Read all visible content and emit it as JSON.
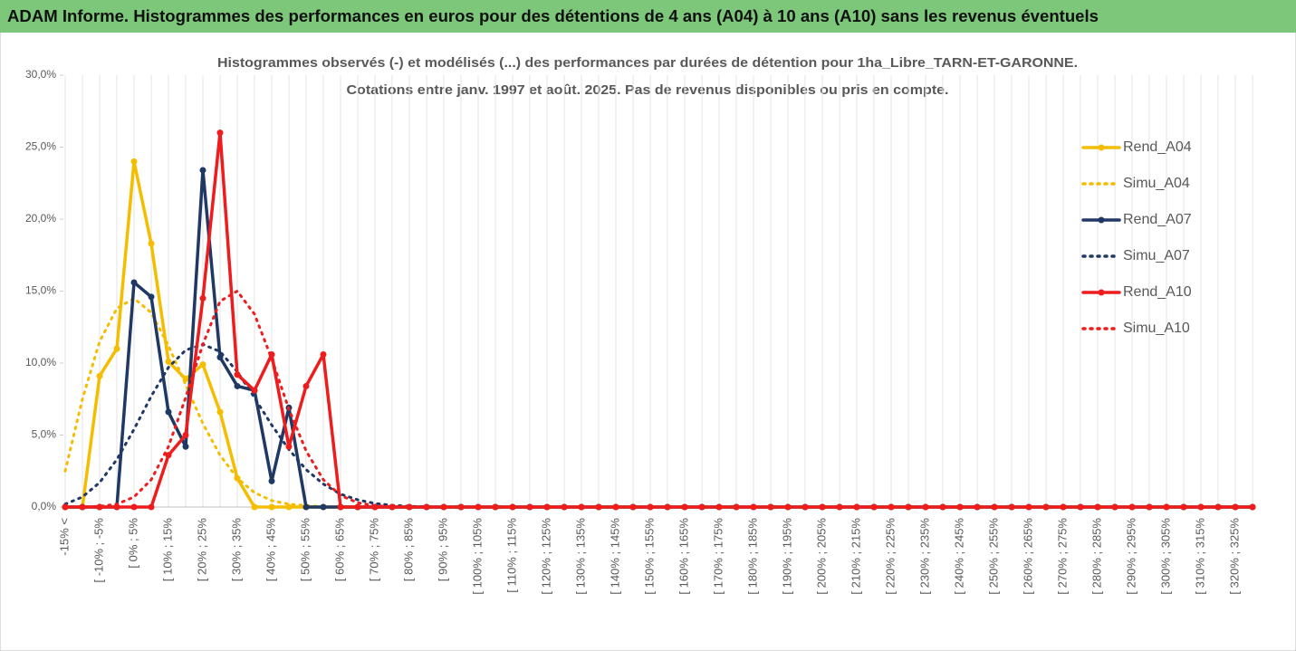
{
  "page_title": "ADAM Informe. Histogrammes des performances en euros pour des détentions de 4 ans (A04) à 10 ans (A10) sans les revenus éventuels",
  "chart_data": {
    "type": "line",
    "title": [
      "Histogrammes observés (-) et modélisés (...) des performances par durées de détention pour 1ha_Libre_TARN-ET-GARONNE.",
      "Cotations entre janv. 1997 et août. 2025. Pas de revenus disponibles ou pris en compte."
    ],
    "categories": [
      "-15% <",
      null,
      "[ -10% ; -5%",
      null,
      "[ 0% ; 5%",
      null,
      "[ 10% ; 15%",
      null,
      "[ 20% ; 25%",
      null,
      "[ 30% ; 35%",
      null,
      "[ 40% ; 45%",
      null,
      "[ 50% ; 55%",
      null,
      "[ 60% ; 65%",
      null,
      "[ 70% ; 75%",
      null,
      "[ 80% ; 85%",
      null,
      "[ 90% ; 95%",
      null,
      "[ 100% ; 105%",
      null,
      "[ 110% ; 115%",
      null,
      "[ 120% ; 125%",
      null,
      "[ 130% ; 135%",
      null,
      "[ 140% ; 145%",
      null,
      "[ 150% ; 155%",
      null,
      "[ 160% ; 165%",
      null,
      "[ 170% ; 175%",
      null,
      "[ 180% ; 185%",
      null,
      "[ 190% ; 195%",
      null,
      "[ 200% ; 205%",
      null,
      "[ 210% ; 215%",
      null,
      "[ 220% ; 225%",
      null,
      "[ 230% ; 235%",
      null,
      "[ 240% ; 245%",
      null,
      "[ 250% ; 255%",
      null,
      "[ 260% ; 265%",
      null,
      "[ 270% ; 275%",
      null,
      "[ 280% ; 285%",
      null,
      "[ 290% ; 295%",
      null,
      "[ 300% ; 305%",
      null,
      "[ 310% ; 315%",
      null,
      "[ 320% ; 325%",
      null
    ],
    "series": [
      {
        "name": "Rend_A04",
        "color": "#f5bd00",
        "line_style": "solid",
        "values": [
          0,
          0,
          9.1,
          11.0,
          24.0,
          18.3,
          10.1,
          8.9,
          9.9,
          6.6,
          2.0,
          0,
          0,
          0,
          0,
          0,
          0,
          0,
          0,
          0,
          0,
          0,
          0,
          0,
          0,
          0,
          0,
          0,
          0,
          0,
          0,
          0,
          0,
          0,
          0,
          0,
          0,
          0,
          0,
          0,
          0,
          0,
          0,
          0,
          0,
          0,
          0,
          0,
          0,
          0,
          0,
          0,
          0,
          0,
          0,
          0,
          0,
          0,
          0,
          0,
          0,
          0,
          0,
          0,
          0,
          0,
          0,
          0,
          0,
          0
        ]
      },
      {
        "name": "Simu_A04",
        "color": "#f5bd00",
        "line_style": "dotted",
        "values": [
          2.5,
          7.5,
          11.5,
          13.8,
          14.5,
          13.5,
          11.2,
          8.5,
          5.8,
          3.6,
          2.0,
          1.0,
          0.45,
          0.2,
          0.1,
          0.03,
          0,
          0,
          0,
          0,
          0,
          0,
          0,
          0,
          0,
          0,
          0,
          0,
          0,
          0,
          0,
          0,
          0,
          0,
          0,
          0,
          0,
          0,
          0,
          0,
          0,
          0,
          0,
          0,
          0,
          0,
          0,
          0,
          0,
          0,
          0,
          0,
          0,
          0,
          0,
          0,
          0,
          0,
          0,
          0,
          0,
          0,
          0,
          0,
          0,
          0,
          0,
          0,
          0,
          0
        ]
      },
      {
        "name": "Rend_A07",
        "color": "#1f3864",
        "line_style": "solid",
        "values": [
          0,
          0,
          0,
          0,
          15.6,
          14.6,
          6.6,
          4.2,
          23.4,
          10.4,
          8.4,
          8.1,
          1.8,
          6.9,
          0,
          0,
          0,
          0,
          0,
          0,
          0,
          0,
          0,
          0,
          0,
          0,
          0,
          0,
          0,
          0,
          0,
          0,
          0,
          0,
          0,
          0,
          0,
          0,
          0,
          0,
          0,
          0,
          0,
          0,
          0,
          0,
          0,
          0,
          0,
          0,
          0,
          0,
          0,
          0,
          0,
          0,
          0,
          0,
          0,
          0,
          0,
          0,
          0,
          0,
          0,
          0,
          0,
          0,
          0,
          0
        ]
      },
      {
        "name": "Simu_A07",
        "color": "#1f3864",
        "line_style": "dotted",
        "values": [
          0.2,
          0.7,
          1.7,
          3.3,
          5.4,
          7.7,
          9.7,
          10.9,
          11.3,
          10.8,
          9.4,
          7.6,
          5.7,
          4.0,
          2.6,
          1.6,
          0.9,
          0.5,
          0.25,
          0.12,
          0.05,
          0.02,
          0,
          0,
          0,
          0,
          0,
          0,
          0,
          0,
          0,
          0,
          0,
          0,
          0,
          0,
          0,
          0,
          0,
          0,
          0,
          0,
          0,
          0,
          0,
          0,
          0,
          0,
          0,
          0,
          0,
          0,
          0,
          0,
          0,
          0,
          0,
          0,
          0,
          0,
          0,
          0,
          0,
          0,
          0,
          0,
          0,
          0,
          0,
          0
        ]
      },
      {
        "name": "Rend_A10",
        "color": "#ee1c1c",
        "line_style": "solid",
        "values": [
          0,
          0,
          0,
          0,
          0,
          0,
          3.6,
          5.0,
          14.5,
          26.0,
          9.2,
          8.1,
          10.6,
          4.2,
          8.4,
          10.6,
          0,
          0,
          0,
          0,
          0,
          0,
          0,
          0,
          0,
          0,
          0,
          0,
          0,
          0,
          0,
          0,
          0,
          0,
          0,
          0,
          0,
          0,
          0,
          0,
          0,
          0,
          0,
          0,
          0,
          0,
          0,
          0,
          0,
          0,
          0,
          0,
          0,
          0,
          0,
          0,
          0,
          0,
          0,
          0,
          0,
          0,
          0,
          0,
          0,
          0,
          0,
          0,
          0,
          0
        ]
      },
      {
        "name": "Simu_A10",
        "color": "#ee1c1c",
        "line_style": "dotted",
        "values": [
          0,
          0,
          0.05,
          0.2,
          0.7,
          1.9,
          4.2,
          7.6,
          11.3,
          14.3,
          15.0,
          13.4,
          10.3,
          6.8,
          3.9,
          1.9,
          0.8,
          0.3,
          0.1,
          0.03,
          0,
          0,
          0,
          0,
          0,
          0,
          0,
          0,
          0,
          0,
          0,
          0,
          0,
          0,
          0,
          0,
          0,
          0,
          0,
          0,
          0,
          0,
          0,
          0,
          0,
          0,
          0,
          0,
          0,
          0,
          0,
          0,
          0,
          0,
          0,
          0,
          0,
          0,
          0,
          0,
          0,
          0,
          0,
          0,
          0,
          0,
          0,
          0,
          0,
          0
        ]
      }
    ],
    "ylim": [
      0,
      30
    ],
    "yticks": [
      {
        "value": 0,
        "label": "0,0%"
      },
      {
        "value": 5,
        "label": "5,0%"
      },
      {
        "value": 10,
        "label": "10,0%"
      },
      {
        "value": 15,
        "label": "15,0%"
      },
      {
        "value": 20,
        "label": "20,0%"
      },
      {
        "value": 25,
        "label": "25,0%"
      },
      {
        "value": 30,
        "label": "30,0%"
      }
    ],
    "legend": "right"
  }
}
